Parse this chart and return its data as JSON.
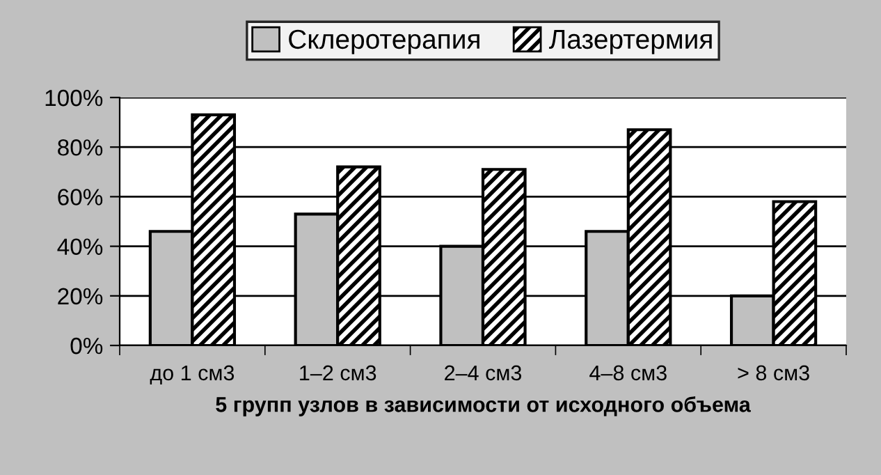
{
  "chart_data": {
    "type": "bar",
    "xlabel": "5 групп узлов в зависимости от исходного объема",
    "categories": [
      "до 1 см3",
      "1–2 см3",
      "2–4 см3",
      "4–8 см3",
      "> 8 см3"
    ],
    "series": [
      {
        "name": "Склеротерапия",
        "color": "#c0c0c0",
        "values": [
          46,
          53,
          40,
          46,
          20
        ]
      },
      {
        "name": "Лазертермия",
        "color": "#000000",
        "values": [
          93,
          72,
          71,
          87,
          58
        ]
      }
    ],
    "ylim": [
      0,
      100
    ],
    "yticks": [
      {
        "value": 0,
        "label": "0%"
      },
      {
        "value": 20,
        "label": "20%"
      },
      {
        "value": 40,
        "label": "40%"
      },
      {
        "value": 60,
        "label": "60%"
      },
      {
        "value": 80,
        "label": "80%"
      },
      {
        "value": 100,
        "label": "100%"
      }
    ],
    "grid": "y",
    "legend": "top"
  }
}
